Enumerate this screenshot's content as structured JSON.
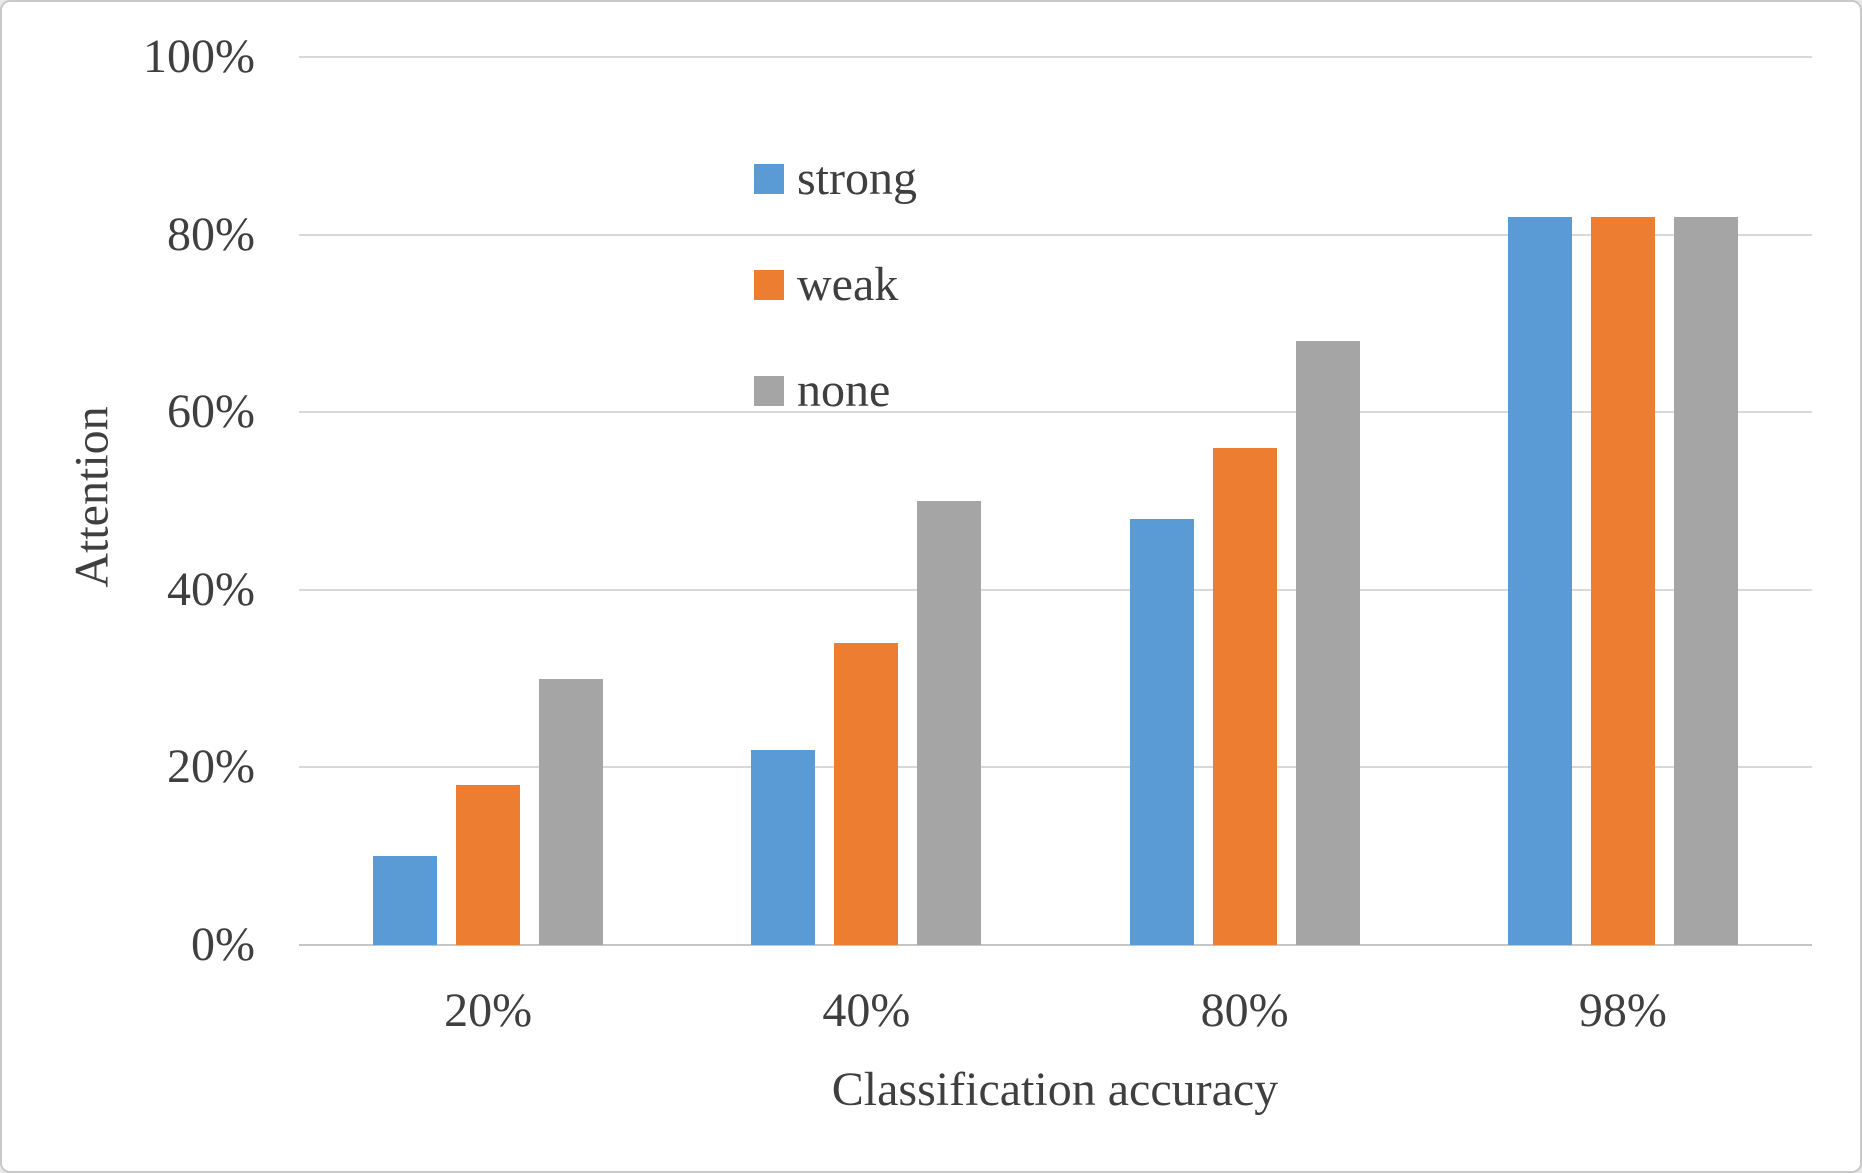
{
  "chart_data": {
    "type": "bar",
    "title": "",
    "categories": [
      "20%",
      "40%",
      "80%",
      "98%"
    ],
    "series": [
      {
        "name": "strong",
        "color": "#5B9BD5",
        "values": [
          10,
          22,
          48,
          82
        ]
      },
      {
        "name": "weak",
        "color": "#ED7D31",
        "values": [
          18,
          34,
          56,
          82
        ]
      },
      {
        "name": "none",
        "color": "#A5A5A5",
        "values": [
          30,
          50,
          68,
          82
        ]
      }
    ],
    "xlabel": "Classification accuracy",
    "ylabel": "Attention",
    "ylim": [
      0,
      100
    ],
    "ytick_values": [
      0,
      20,
      40,
      60,
      80,
      100
    ],
    "ytick_labels": [
      "0%",
      "20%",
      "40%",
      "60%",
      "80%",
      "100%"
    ],
    "grid": true,
    "legend_position": "upper-left-inside",
    "value_unit": "%"
  },
  "colors": {
    "grid": "#D9D9D9",
    "axis": "#C6C6C6",
    "text": "#3F3F3F",
    "background": "#FFFFFF",
    "frame_border": "#C9C9C9"
  }
}
